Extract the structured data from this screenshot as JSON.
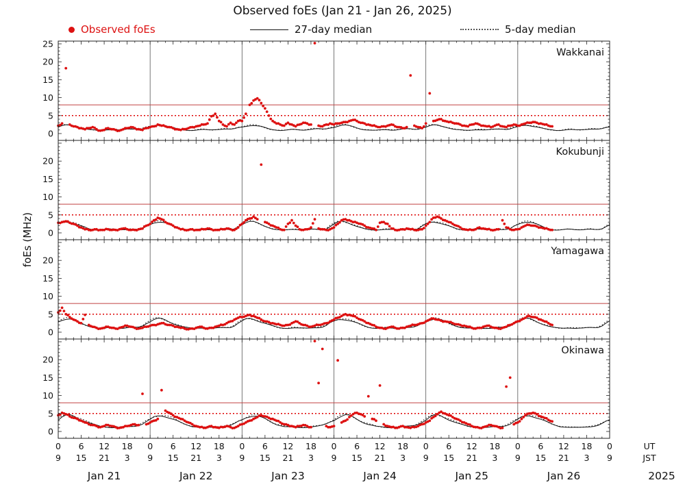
{
  "title": "Observed foEs (Jan 21 - Jan 26, 2025)",
  "legend": {
    "observed_label": "Observed foEs",
    "median27_label": "27-day median",
    "median5_label": "5-day median"
  },
  "ylabel": "foEs (MHz)",
  "colors": {
    "observed": "#dd1111",
    "median": "#111111",
    "threshold_solid": "#c04040",
    "threshold_dotted": "#dd0000",
    "dayline": "#555555",
    "frame": "#222222"
  },
  "axis": {
    "ut_labels": [
      "0",
      "6",
      "12",
      "18",
      "0",
      "6",
      "12",
      "18",
      "0",
      "6",
      "12",
      "18",
      "0",
      "6",
      "12",
      "18",
      "0",
      "6",
      "12",
      "18",
      "0",
      "6",
      "12",
      "18",
      "0"
    ],
    "jst_labels": [
      "9",
      "15",
      "21",
      "3",
      "9",
      "15",
      "21",
      "3",
      "9",
      "15",
      "21",
      "3",
      "9",
      "15",
      "21",
      "3",
      "9",
      "15",
      "21",
      "3",
      "9",
      "15",
      "21",
      "3",
      "9"
    ],
    "ut_unit": "UT",
    "jst_unit": "JST",
    "dates": [
      "Jan 21",
      "Jan 22",
      "Jan 23",
      "Jan 24",
      "Jan 25",
      "Jan 26"
    ],
    "year": "2025",
    "y_ticks": [
      0,
      5,
      10,
      15,
      20,
      25
    ]
  },
  "chart_data": {
    "type": "scatter",
    "x_unit": "hours UT since Jan 21 2025 00:00",
    "x_range": [
      0,
      144
    ],
    "y_range": [
      0,
      25
    ],
    "sample_interval_hours": 1,
    "grid": "vertical day boundaries",
    "legend_position": "top",
    "thresholds": {
      "solid_mhz": 8.0,
      "dotted_mhz": 5.0
    },
    "panels": [
      {
        "name": "Wakkanai",
        "y_labels": [
          0,
          5,
          10,
          15,
          20,
          25
        ],
        "observed": [
          2.2,
          2.8,
          18.2,
          2.5,
          2.0,
          1.8,
          1.5,
          1.2,
          1.5,
          1.8,
          1.2,
          0.8,
          1.0,
          1.5,
          1.2,
          1.0,
          0.8,
          1.2,
          1.5,
          1.8,
          1.5,
          1.2,
          1.0,
          1.5,
          1.8,
          2.0,
          2.5,
          2.2,
          2.0,
          1.8,
          1.5,
          1.2,
          1.0,
          1.2,
          1.5,
          1.8,
          2.0,
          2.2,
          2.5,
          2.8,
          4.8,
          5.5,
          3.5,
          2.5,
          2.0,
          3.0,
          2.5,
          3.5,
          3.5,
          5.5,
          8.0,
          9.2,
          9.8,
          8.5,
          7.0,
          5.0,
          3.5,
          2.8,
          2.5,
          2.2,
          3.0,
          2.5,
          2.0,
          2.5,
          3.0,
          2.8,
          2.5,
          25.2,
          2.2,
          2.0,
          2.5,
          2.8,
          2.5,
          2.8,
          3.0,
          3.2,
          3.5,
          3.8,
          3.5,
          3.0,
          2.8,
          2.5,
          2.2,
          2.0,
          1.8,
          2.0,
          2.2,
          2.5,
          2.0,
          1.8,
          1.5,
          1.8,
          16.2,
          2.2,
          1.8,
          1.5,
          2.8,
          11.2,
          3.5,
          3.8,
          4.0,
          3.5,
          3.2,
          3.0,
          2.8,
          2.5,
          2.2,
          2.0,
          2.5,
          2.8,
          2.5,
          2.2,
          2.0,
          1.8,
          2.2,
          2.5,
          2.0,
          1.8,
          2.2,
          2.5,
          2.2,
          2.5,
          2.8,
          3.0,
          3.2,
          3.0,
          2.8,
          2.5,
          2.2,
          2.0
        ],
        "median27_diurnal": [
          1.8,
          2.1,
          2.3,
          2.3,
          2.1,
          1.9,
          1.6,
          1.3,
          1.1,
          1.0,
          0.9,
          0.9,
          1.0,
          1.1,
          1.1,
          1.0,
          1.0,
          1.1,
          1.2,
          1.3,
          1.3,
          1.2,
          1.3,
          1.6
        ],
        "median5_diurnal": [
          2.0,
          2.3,
          2.5,
          2.4,
          2.2,
          1.9,
          1.6,
          1.3,
          1.1,
          1.0,
          0.9,
          0.9,
          1.0,
          1.2,
          1.2,
          1.1,
          1.0,
          1.1,
          1.3,
          1.4,
          1.3,
          1.2,
          1.4,
          1.8
        ]
      },
      {
        "name": "Kokubunji",
        "y_labels": [
          0,
          5,
          10,
          15,
          20
        ],
        "observed": [
          2.8,
          3.0,
          3.2,
          2.8,
          2.5,
          2.0,
          1.5,
          1.0,
          0.8,
          0.8,
          1.0,
          0.8,
          0.8,
          1.0,
          0.8,
          0.8,
          1.0,
          1.2,
          1.0,
          0.8,
          0.8,
          1.0,
          1.2,
          2.0,
          2.5,
          3.5,
          4.2,
          3.8,
          3.0,
          2.5,
          2.0,
          1.5,
          1.0,
          0.8,
          0.8,
          1.0,
          0.8,
          0.8,
          1.0,
          1.2,
          1.0,
          0.8,
          0.8,
          1.0,
          1.2,
          1.0,
          0.8,
          1.5,
          2.5,
          3.5,
          4.0,
          4.5,
          3.8,
          19.0,
          3.0,
          2.5,
          2.0,
          1.5,
          1.0,
          0.8,
          2.5,
          3.5,
          2.0,
          1.0,
          0.8,
          1.0,
          1.5,
          3.8,
          1.2,
          1.0,
          0.8,
          1.0,
          1.5,
          2.5,
          3.5,
          3.8,
          3.5,
          3.0,
          2.8,
          2.5,
          2.0,
          1.5,
          1.2,
          0.8,
          2.8,
          3.0,
          2.5,
          1.2,
          0.8,
          0.8,
          1.0,
          1.2,
          1.0,
          0.8,
          0.8,
          1.0,
          2.0,
          3.0,
          4.2,
          4.5,
          4.0,
          3.5,
          3.0,
          2.5,
          2.0,
          1.5,
          1.0,
          0.8,
          0.8,
          1.0,
          1.5,
          1.2,
          1.0,
          0.8,
          0.8,
          1.0,
          3.5,
          1.5,
          1.0,
          0.8,
          1.0,
          1.5,
          2.0,
          2.2,
          2.0,
          1.8,
          1.5,
          1.2,
          1.0,
          0.8
        ],
        "median27_diurnal": [
          2.4,
          2.9,
          3.1,
          3.0,
          2.7,
          2.3,
          1.9,
          1.5,
          1.1,
          0.9,
          0.8,
          0.8,
          0.9,
          1.0,
          1.0,
          0.9,
          0.9,
          0.9,
          1.0,
          1.0,
          0.9,
          0.9,
          1.1,
          1.8
        ],
        "median5_diurnal": [
          2.6,
          3.1,
          3.3,
          3.1,
          2.8,
          2.4,
          1.9,
          1.5,
          1.1,
          0.9,
          0.8,
          0.8,
          0.9,
          1.1,
          1.1,
          1.0,
          0.9,
          0.9,
          1.0,
          1.1,
          1.0,
          0.9,
          1.2,
          2.0
        ]
      },
      {
        "name": "Yamagawa",
        "y_labels": [
          0,
          5,
          10,
          15,
          20
        ],
        "observed": [
          5.5,
          6.8,
          5.0,
          4.2,
          3.5,
          3.0,
          2.5,
          4.8,
          2.0,
          1.5,
          1.2,
          1.0,
          1.2,
          1.5,
          1.2,
          1.0,
          1.2,
          1.5,
          1.8,
          1.5,
          1.2,
          1.0,
          1.2,
          1.5,
          1.8,
          2.0,
          2.2,
          2.5,
          2.2,
          2.0,
          1.8,
          1.5,
          1.2,
          1.0,
          0.8,
          1.0,
          1.2,
          1.5,
          1.2,
          1.0,
          1.2,
          1.5,
          1.8,
          2.0,
          2.5,
          3.0,
          3.5,
          4.0,
          4.2,
          4.5,
          4.8,
          4.5,
          4.0,
          3.5,
          3.0,
          2.8,
          2.5,
          2.2,
          2.0,
          1.8,
          2.0,
          2.5,
          3.0,
          2.5,
          2.0,
          1.8,
          1.5,
          1.8,
          2.0,
          2.2,
          2.5,
          3.0,
          3.5,
          4.0,
          4.5,
          5.0,
          4.8,
          4.5,
          4.0,
          3.5,
          3.0,
          2.5,
          2.0,
          1.5,
          1.2,
          1.0,
          1.2,
          1.5,
          1.2,
          1.0,
          1.2,
          1.5,
          1.8,
          2.0,
          2.2,
          2.5,
          3.0,
          3.5,
          3.8,
          3.5,
          3.2,
          3.0,
          2.8,
          2.5,
          2.2,
          2.0,
          1.8,
          1.5,
          1.2,
          1.0,
          1.2,
          1.5,
          1.8,
          1.5,
          1.2,
          1.0,
          1.2,
          1.5,
          2.0,
          2.5,
          3.0,
          3.5,
          4.0,
          4.5,
          4.2,
          4.0,
          3.5,
          3.0,
          2.5,
          2.0
        ],
        "median27_diurnal": [
          3.0,
          3.5,
          3.7,
          3.6,
          3.3,
          2.9,
          2.5,
          2.1,
          1.7,
          1.4,
          1.2,
          1.1,
          1.1,
          1.2,
          1.2,
          1.1,
          1.1,
          1.1,
          1.2,
          1.3,
          1.3,
          1.4,
          1.8,
          2.5
        ],
        "median5_diurnal": [
          3.2,
          3.7,
          3.9,
          3.7,
          3.4,
          3.0,
          2.5,
          2.1,
          1.7,
          1.4,
          1.2,
          1.1,
          1.1,
          1.3,
          1.3,
          1.2,
          1.1,
          1.2,
          1.3,
          1.4,
          1.4,
          1.5,
          1.9,
          2.7
        ]
      },
      {
        "name": "Okinawa",
        "y_labels": [
          0,
          5,
          10,
          15,
          20
        ],
        "observed": [
          4.5,
          5.2,
          4.8,
          4.2,
          3.8,
          3.5,
          3.0,
          2.5,
          2.0,
          1.8,
          1.5,
          1.2,
          1.5,
          1.8,
          1.5,
          1.2,
          1.0,
          1.2,
          1.5,
          1.8,
          2.0,
          1.8,
          10.5,
          2.0,
          2.5,
          3.0,
          3.5,
          11.5,
          5.8,
          5.2,
          4.5,
          4.0,
          3.5,
          3.0,
          2.5,
          2.0,
          1.5,
          1.2,
          1.0,
          1.2,
          1.5,
          1.2,
          1.0,
          1.2,
          1.5,
          1.2,
          1.0,
          1.5,
          2.0,
          2.5,
          3.0,
          3.5,
          4.0,
          4.5,
          4.2,
          3.8,
          3.5,
          3.0,
          2.5,
          2.0,
          1.8,
          1.5,
          1.2,
          1.5,
          1.8,
          1.5,
          1.2,
          25.5,
          13.5,
          23.0,
          1.5,
          1.2,
          1.5,
          19.8,
          2.5,
          3.0,
          4.0,
          4.8,
          5.2,
          4.8,
          4.2,
          9.8,
          3.5,
          3.0,
          12.8,
          2.0,
          1.5,
          1.2,
          1.0,
          1.2,
          1.5,
          1.2,
          1.0,
          1.2,
          1.5,
          2.0,
          2.5,
          3.0,
          4.0,
          4.8,
          5.5,
          5.0,
          4.5,
          4.0,
          3.5,
          3.0,
          2.5,
          2.0,
          1.5,
          1.2,
          1.0,
          1.2,
          1.5,
          1.8,
          1.5,
          1.2,
          1.0,
          12.5,
          15.0,
          2.0,
          2.5,
          3.5,
          4.5,
          5.0,
          5.2,
          4.8,
          4.2,
          3.8,
          3.2,
          2.8
        ],
        "median27_diurnal": [
          3.2,
          3.9,
          4.3,
          4.5,
          4.3,
          3.9,
          3.4,
          2.9,
          2.4,
          2.0,
          1.7,
          1.4,
          1.3,
          1.2,
          1.1,
          1.1,
          1.1,
          1.2,
          1.3,
          1.4,
          1.5,
          1.7,
          2.1,
          2.7
        ],
        "median5_diurnal": [
          3.4,
          4.1,
          4.5,
          4.7,
          4.5,
          4.1,
          3.6,
          3.0,
          2.5,
          2.1,
          1.8,
          1.5,
          1.3,
          1.2,
          1.2,
          1.2,
          1.2,
          1.3,
          1.4,
          1.5,
          1.6,
          1.8,
          2.3,
          2.9
        ]
      }
    ]
  }
}
